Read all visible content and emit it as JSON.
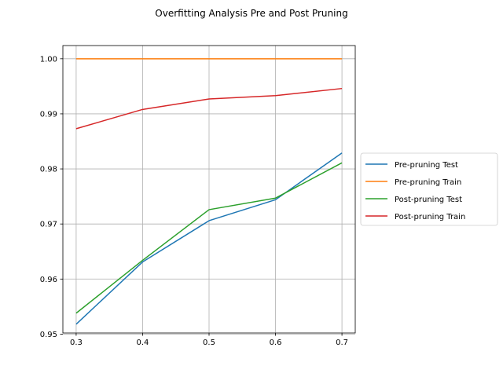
{
  "chart_data": {
    "type": "line",
    "title": "Overfitting Analysis Pre and Post Pruning",
    "xlabel": "",
    "ylabel": "",
    "x": [
      0.3,
      0.4,
      0.5,
      0.6,
      0.7
    ],
    "x_ticks": [
      "0.3",
      "0.4",
      "0.5",
      "0.6",
      "0.7"
    ],
    "y_ticks": [
      "0.95",
      "0.96",
      "0.97",
      "0.98",
      "0.99",
      "1.00"
    ],
    "xlim": [
      0.28,
      0.72
    ],
    "ylim": [
      0.9502,
      1.0024
    ],
    "grid": true,
    "legend_position": "center-right, outside plot",
    "series": [
      {
        "name": "Pre-pruning Test",
        "color": "#1f77b4",
        "values": [
          0.9518,
          0.9631,
          0.9706,
          0.9744,
          0.9829
        ]
      },
      {
        "name": "Pre-pruning Train",
        "color": "#ff7f0e",
        "values": [
          1.0,
          1.0,
          1.0,
          1.0,
          1.0
        ]
      },
      {
        "name": "Post-pruning Test",
        "color": "#2ca02c",
        "values": [
          0.9538,
          0.9634,
          0.9726,
          0.9747,
          0.9811
        ]
      },
      {
        "name": "Post-pruning Train",
        "color": "#d62728",
        "values": [
          0.9873,
          0.9908,
          0.9927,
          0.9933,
          0.9946
        ]
      }
    ]
  }
}
